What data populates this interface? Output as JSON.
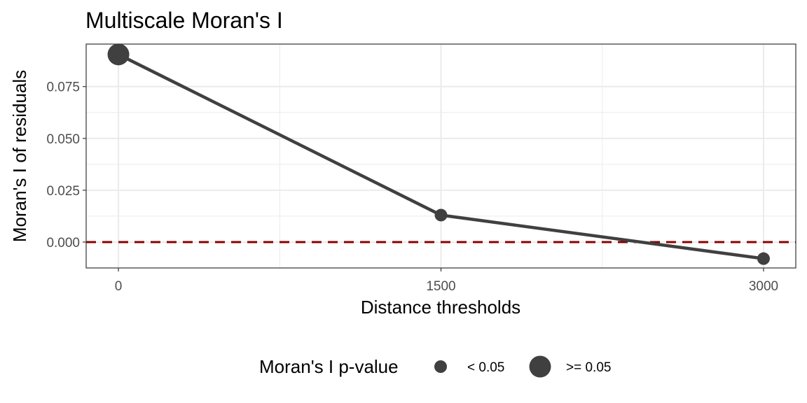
{
  "chart_data": {
    "type": "line",
    "title": "Multiscale Moran's I",
    "xlabel": "Distance thresholds",
    "ylabel": "Moran's I of residuals",
    "x": [
      0,
      1500,
      3000
    ],
    "y": [
      0.0905,
      0.013,
      -0.008
    ],
    "p_value_group": [
      ">= 0.05",
      "< 0.05",
      "< 0.05"
    ],
    "xlim": [
      -150,
      3150
    ],
    "ylim": [
      -0.0125,
      0.0955
    ],
    "x_ticks": [
      0,
      1500,
      3000
    ],
    "x_tick_labels": [
      "0",
      "1500",
      "3000"
    ],
    "y_ticks": [
      0,
      0.025,
      0.05,
      0.075
    ],
    "y_tick_labels": [
      "0.000",
      "0.025",
      "0.050",
      "0.075"
    ],
    "reference_line": {
      "y": 0,
      "style": "dashed",
      "color": "#8b0000"
    },
    "legend": {
      "title": "Moran's I p-value",
      "position": "bottom",
      "entries": [
        {
          "label": "< 0.05",
          "size": "small"
        },
        {
          "label": ">= 0.05",
          "size": "large"
        }
      ]
    },
    "colors": {
      "series": "#404040",
      "reference": "#8b0000",
      "grid": "#ebebeb",
      "panel_border": "#333333"
    },
    "grid": true
  }
}
